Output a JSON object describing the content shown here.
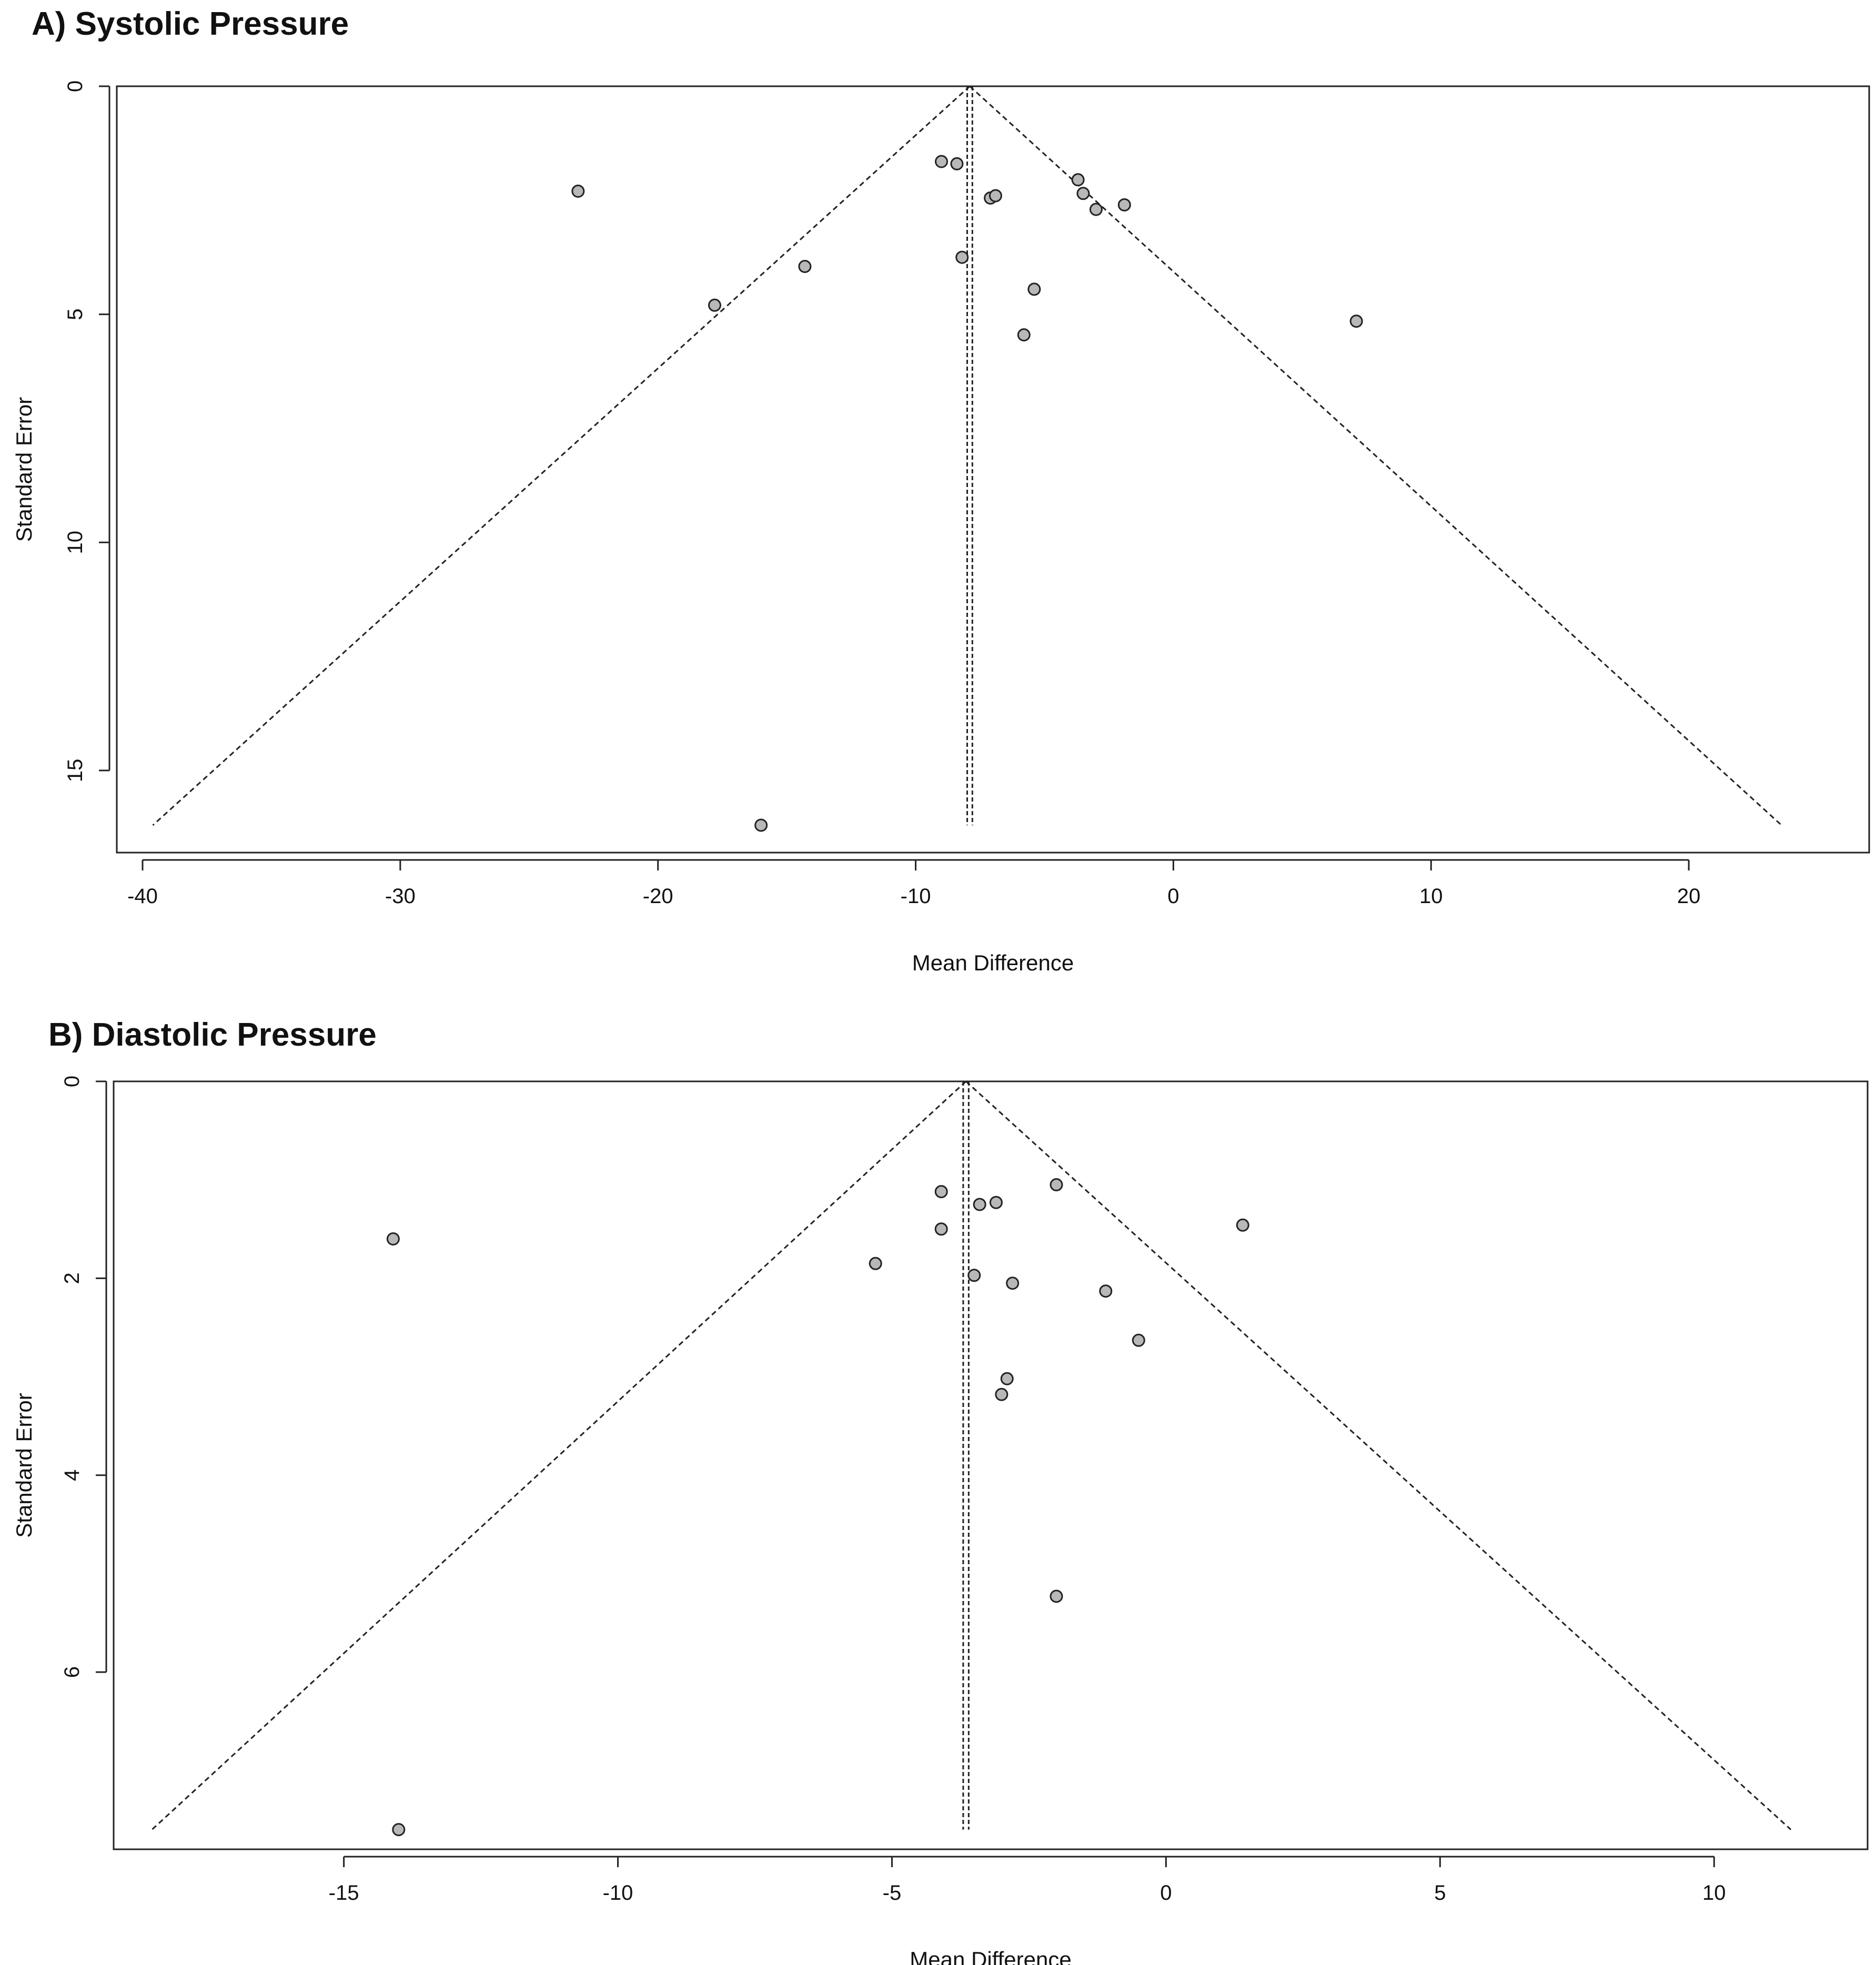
{
  "chart_data": [
    {
      "type": "scatter",
      "subtype": "funnel",
      "title": "A) Systolic Pressure",
      "xlabel": "Mean Difference",
      "ylabel": "Standard Error",
      "xlim": [
        -41,
        27
      ],
      "ylim": [
        0,
        16.8
      ],
      "y_reversed": true,
      "xticks": [
        -40,
        -30,
        -20,
        -10,
        0,
        10,
        20
      ],
      "yticks": [
        0,
        5,
        10,
        15
      ],
      "grid": false,
      "legend": "none",
      "pooled_estimates": [
        -8.0,
        -7.8
      ],
      "funnel": {
        "apex": [
          -7.9,
          0
        ],
        "base_left": [
          -39.6,
          16.2
        ],
        "base_right": [
          23.6,
          16.2
        ]
      },
      "points": [
        {
          "x": -23.1,
          "y": 2.3
        },
        {
          "x": -14.3,
          "y": 3.95
        },
        {
          "x": -17.8,
          "y": 4.8
        },
        {
          "x": -16.0,
          "y": 16.2
        },
        {
          "x": -9.0,
          "y": 1.65
        },
        {
          "x": -8.4,
          "y": 1.7
        },
        {
          "x": -8.2,
          "y": 3.75
        },
        {
          "x": -7.1,
          "y": 2.45
        },
        {
          "x": -6.9,
          "y": 2.4
        },
        {
          "x": -5.4,
          "y": 4.45
        },
        {
          "x": -5.8,
          "y": 5.45
        },
        {
          "x": -3.7,
          "y": 2.05
        },
        {
          "x": -3.5,
          "y": 2.35
        },
        {
          "x": -3.0,
          "y": 2.7
        },
        {
          "x": -1.9,
          "y": 2.6
        },
        {
          "x": 7.1,
          "y": 5.15
        }
      ],
      "colors": {
        "point_fill": "#b8b8b8",
        "line": "#222222"
      }
    },
    {
      "type": "scatter",
      "subtype": "funnel",
      "title": "B) Diastolic Pressure",
      "xlabel": "Mean Difference",
      "ylabel": "Standard Error",
      "xlim": [
        -19.2,
        12.8
      ],
      "ylim": [
        0,
        7.8
      ],
      "y_reversed": true,
      "xticks": [
        -15,
        -10,
        -5,
        0,
        5,
        10
      ],
      "yticks": [
        0,
        2,
        4,
        6
      ],
      "grid": false,
      "legend": "none",
      "pooled_estimates": [
        -3.7,
        -3.6
      ],
      "funnel": {
        "apex": [
          -3.65,
          0
        ],
        "base_left": [
          -18.5,
          7.6
        ],
        "base_right": [
          11.4,
          7.6
        ]
      },
      "points": [
        {
          "x": -14.1,
          "y": 1.6
        },
        {
          "x": -14.0,
          "y": 7.6
        },
        {
          "x": -5.3,
          "y": 1.85
        },
        {
          "x": -4.1,
          "y": 1.12
        },
        {
          "x": -4.1,
          "y": 1.5
        },
        {
          "x": -3.5,
          "y": 1.97
        },
        {
          "x": -3.4,
          "y": 1.25
        },
        {
          "x": -3.1,
          "y": 1.23
        },
        {
          "x": -2.8,
          "y": 2.05
        },
        {
          "x": -2.9,
          "y": 3.02
        },
        {
          "x": -3.0,
          "y": 3.18
        },
        {
          "x": -2.0,
          "y": 1.05
        },
        {
          "x": -2.0,
          "y": 5.23
        },
        {
          "x": -1.1,
          "y": 2.13
        },
        {
          "x": -0.5,
          "y": 2.63
        },
        {
          "x": 1.4,
          "y": 1.46
        }
      ],
      "colors": {
        "point_fill": "#b8b8b8",
        "line": "#222222"
      }
    }
  ]
}
